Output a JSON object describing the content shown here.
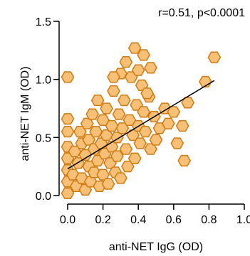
{
  "chart_data": {
    "type": "scatter",
    "xlabel": "anti-NET IgG (OD)",
    "ylabel": "anti-NET IgM  (OD)",
    "annotation": "r=0.51, p<0.0001",
    "xlim": [
      0,
      1.0
    ],
    "ylim": [
      0,
      1.5
    ],
    "xticks": [
      "0.0",
      "0.2",
      "0.4",
      "0.6",
      "0.8",
      "1.0"
    ],
    "yticks": [
      "0.0",
      "0.5",
      "1.0",
      "1.5"
    ],
    "x_tick_values": [
      0,
      0.2,
      0.4,
      0.6,
      0.8,
      1.0
    ],
    "y_tick_values": [
      0,
      0.5,
      1.0,
      1.5
    ],
    "grid": false,
    "marker": "hexagon",
    "marker_fill": "#f8c076",
    "marker_edge": "#d07a10",
    "line_color": "#000000",
    "trendline": {
      "x": [
        0.0,
        0.83
      ],
      "y": [
        0.23,
        0.99
      ]
    },
    "points": [
      {
        "x": 0.0,
        "y": 1.02
      },
      {
        "x": 0.0,
        "y": 0.66
      },
      {
        "x": 0.0,
        "y": 0.55
      },
      {
        "x": 0.0,
        "y": 0.42
      },
      {
        "x": 0.0,
        "y": 0.32
      },
      {
        "x": 0.0,
        "y": 0.22
      },
      {
        "x": 0.0,
        "y": 0.12
      },
      {
        "x": 0.0,
        "y": 0.02
      },
      {
        "x": 0.03,
        "y": 0.18
      },
      {
        "x": 0.04,
        "y": 0.38
      },
      {
        "x": 0.05,
        "y": 0.08
      },
      {
        "x": 0.06,
        "y": 0.28
      },
      {
        "x": 0.07,
        "y": 0.55
      },
      {
        "x": 0.08,
        "y": 0.45
      },
      {
        "x": 0.08,
        "y": 0.15
      },
      {
        "x": 0.1,
        "y": 0.05
      },
      {
        "x": 0.1,
        "y": 0.35
      },
      {
        "x": 0.11,
        "y": 0.62
      },
      {
        "x": 0.12,
        "y": 0.25
      },
      {
        "x": 0.12,
        "y": 0.48
      },
      {
        "x": 0.13,
        "y": 0.12
      },
      {
        "x": 0.14,
        "y": 0.7
      },
      {
        "x": 0.15,
        "y": 0.4
      },
      {
        "x": 0.15,
        "y": 0.2
      },
      {
        "x": 0.16,
        "y": 0.55
      },
      {
        "x": 0.17,
        "y": 0.3
      },
      {
        "x": 0.17,
        "y": 0.82
      },
      {
        "x": 0.18,
        "y": 0.08
      },
      {
        "x": 0.19,
        "y": 0.45
      },
      {
        "x": 0.2,
        "y": 0.65
      },
      {
        "x": 0.2,
        "y": 0.18
      },
      {
        "x": 0.21,
        "y": 0.36
      },
      {
        "x": 0.22,
        "y": 0.52
      },
      {
        "x": 0.22,
        "y": 0.75
      },
      {
        "x": 0.23,
        "y": 0.1
      },
      {
        "x": 0.24,
        "y": 0.28
      },
      {
        "x": 0.25,
        "y": 0.42
      },
      {
        "x": 0.25,
        "y": 0.6
      },
      {
        "x": 0.26,
        "y": 0.9
      },
      {
        "x": 0.27,
        "y": 0.2
      },
      {
        "x": 0.28,
        "y": 0.5
      },
      {
        "x": 0.28,
        "y": 0.34
      },
      {
        "x": 0.29,
        "y": 0.7
      },
      {
        "x": 0.3,
        "y": 0.15
      },
      {
        "x": 0.31,
        "y": 0.58
      },
      {
        "x": 0.32,
        "y": 0.82
      },
      {
        "x": 0.33,
        "y": 0.4
      },
      {
        "x": 0.34,
        "y": 0.25
      },
      {
        "x": 0.35,
        "y": 0.65
      },
      {
        "x": 0.36,
        "y": 1.02
      },
      {
        "x": 0.37,
        "y": 0.52
      },
      {
        "x": 0.38,
        "y": 0.32
      },
      {
        "x": 0.39,
        "y": 0.78
      },
      {
        "x": 0.4,
        "y": 0.6
      },
      {
        "x": 0.41,
        "y": 0.45
      },
      {
        "x": 0.42,
        "y": 0.95
      },
      {
        "x": 0.43,
        "y": 0.72
      },
      {
        "x": 0.44,
        "y": 0.55
      },
      {
        "x": 0.46,
        "y": 0.85
      },
      {
        "x": 0.47,
        "y": 0.4
      },
      {
        "x": 0.49,
        "y": 0.68
      },
      {
        "x": 0.5,
        "y": 0.48
      },
      {
        "x": 0.52,
        "y": 0.58
      },
      {
        "x": 0.55,
        "y": 0.75
      },
      {
        "x": 0.57,
        "y": 0.62
      },
      {
        "x": 0.6,
        "y": 0.72
      },
      {
        "x": 0.62,
        "y": 0.45
      },
      {
        "x": 0.65,
        "y": 0.6
      },
      {
        "x": 0.68,
        "y": 0.8
      },
      {
        "x": 0.66,
        "y": 0.3
      },
      {
        "x": 0.78,
        "y": 0.98
      },
      {
        "x": 0.83,
        "y": 1.19
      },
      {
        "x": 0.38,
        "y": 1.27
      },
      {
        "x": 0.43,
        "y": 1.21
      },
      {
        "x": 0.33,
        "y": 1.15
      },
      {
        "x": 0.4,
        "y": 1.08
      },
      {
        "x": 0.47,
        "y": 1.1
      },
      {
        "x": 0.3,
        "y": 1.05
      },
      {
        "x": 0.26,
        "y": 1.02
      },
      {
        "x": 0.45,
        "y": 0.88
      }
    ]
  }
}
